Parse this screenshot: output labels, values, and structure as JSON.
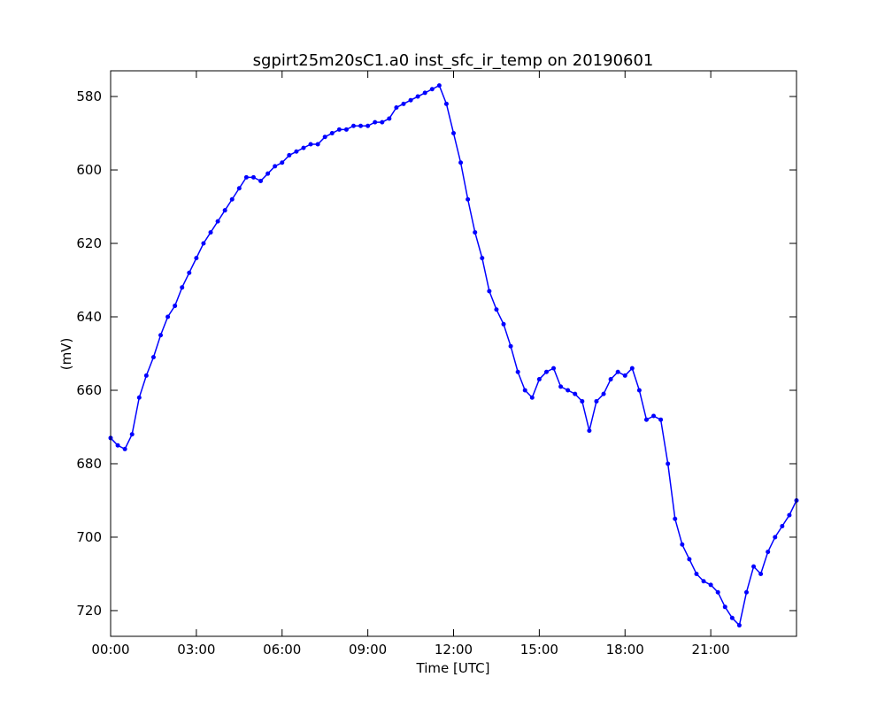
{
  "chart_data": {
    "type": "line",
    "title": "sgpirt25m20sC1.a0 inst_sfc_ir_temp on 20190601",
    "xlabel": "Time [UTC]",
    "ylabel": "(mV)",
    "x": [
      0,
      0.25,
      0.5,
      0.75,
      1,
      1.25,
      1.5,
      1.75,
      2,
      2.25,
      2.5,
      2.75,
      3,
      3.25,
      3.5,
      3.75,
      4,
      4.25,
      4.5,
      4.75,
      5,
      5.25,
      5.5,
      5.75,
      6,
      6.25,
      6.5,
      6.75,
      7,
      7.25,
      7.5,
      7.75,
      8,
      8.25,
      8.5,
      8.75,
      9,
      9.25,
      9.5,
      9.75,
      10,
      10.25,
      10.5,
      10.75,
      11,
      11.25,
      11.5,
      11.75,
      12,
      12.25,
      12.5,
      12.75,
      13,
      13.25,
      13.5,
      13.75,
      14,
      14.25,
      14.5,
      14.75,
      15,
      15.25,
      15.5,
      15.75,
      16,
      16.25,
      16.5,
      16.75,
      17,
      17.25,
      17.5,
      17.75,
      18,
      18.25,
      18.5,
      18.75,
      19,
      19.25,
      19.5,
      19.75,
      20,
      20.25,
      20.5,
      20.75,
      21,
      21.25,
      21.5,
      21.75,
      22,
      22.25,
      22.5,
      22.75,
      23,
      23.25,
      23.5,
      23.75,
      24
    ],
    "series": [
      {
        "name": "inst_sfc_ir_temp",
        "color": "#0000ff",
        "values": [
          673,
          675,
          676,
          672,
          662,
          656,
          651,
          645,
          640,
          637,
          632,
          628,
          624,
          620,
          617,
          614,
          611,
          608,
          605,
          602,
          602,
          603,
          601,
          599,
          598,
          596,
          595,
          594,
          593,
          593,
          591,
          590,
          589,
          589,
          588,
          588,
          588,
          587,
          587,
          586,
          583,
          582,
          581,
          580,
          579,
          578,
          577,
          582,
          590,
          598,
          608,
          617,
          624,
          633,
          638,
          642,
          648,
          655,
          660,
          662,
          657,
          655,
          654,
          659,
          660,
          661,
          663,
          671,
          663,
          661,
          657,
          655,
          656,
          654,
          660,
          668,
          667,
          668,
          680,
          695,
          702,
          706,
          710,
          712,
          713,
          715,
          719,
          722,
          724,
          715,
          708,
          710,
          704,
          700,
          697,
          694,
          690
        ]
      }
    ],
    "xlim": [
      0,
      24
    ],
    "xticks": [
      {
        "value": 0,
        "label": "00:00"
      },
      {
        "value": 3,
        "label": "03:00"
      },
      {
        "value": 6,
        "label": "06:00"
      },
      {
        "value": 9,
        "label": "09:00"
      },
      {
        "value": 12,
        "label": "12:00"
      },
      {
        "value": 15,
        "label": "15:00"
      },
      {
        "value": 18,
        "label": "18:00"
      },
      {
        "value": 21,
        "label": "21:00"
      }
    ],
    "ylim": [
      727,
      573
    ],
    "yticks": [
      580,
      600,
      620,
      640,
      660,
      680,
      700,
      720
    ],
    "grid": false
  }
}
